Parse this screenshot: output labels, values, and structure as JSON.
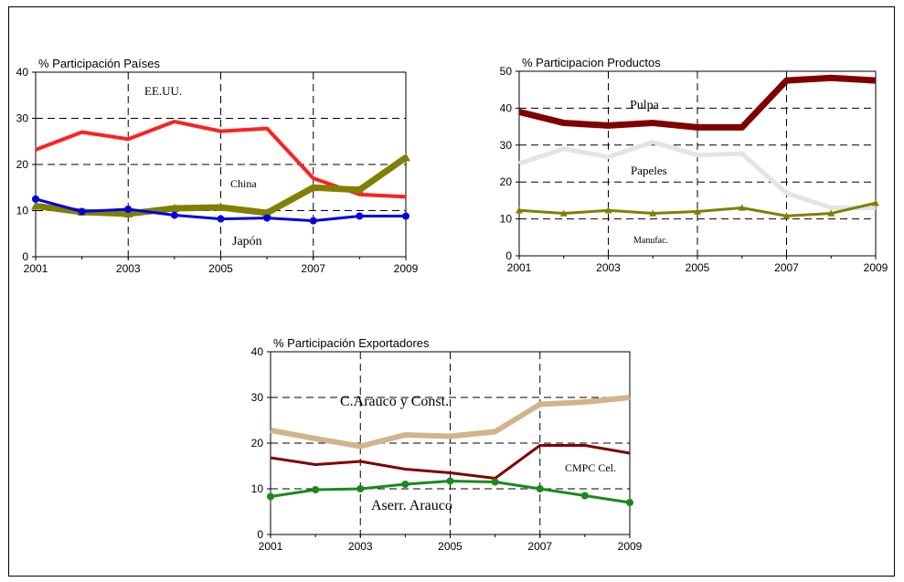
{
  "chart_data": [
    {
      "type": "line",
      "title": "% Participación Países",
      "x": [
        2001,
        2002,
        2003,
        2004,
        2005,
        2006,
        2007,
        2008,
        2009
      ],
      "x_tick_labels": [
        "2001",
        "2003",
        "2005",
        "2007",
        "2009"
      ],
      "y_tick_labels": [
        "0",
        "10",
        "20",
        "30",
        "40"
      ],
      "ylim": [
        0,
        40
      ],
      "grid": "dashed",
      "series": [
        {
          "name": "EE.UU.",
          "color": "#ff2020",
          "values": [
            23.2,
            27.0,
            25.5,
            29.3,
            27.2,
            27.8,
            17.0,
            13.5,
            13.0
          ]
        },
        {
          "name": "China",
          "color": "#808000",
          "values": [
            11.0,
            9.7,
            9.3,
            10.5,
            10.7,
            9.5,
            15.0,
            14.5,
            21.5
          ]
        },
        {
          "name": "Japón",
          "color": "#0000e0",
          "values": [
            12.5,
            9.8,
            10.3,
            9.0,
            8.2,
            8.4,
            7.8,
            8.8,
            8.8
          ]
        }
      ]
    },
    {
      "type": "line",
      "title": "% Participacion Productos",
      "x": [
        2001,
        2002,
        2003,
        2004,
        2005,
        2006,
        2007,
        2008,
        2009
      ],
      "x_tick_labels": [
        "2001",
        "2003",
        "2005",
        "2007",
        "2009"
      ],
      "y_tick_labels": [
        "0",
        "10",
        "20",
        "30",
        "40",
        "50"
      ],
      "ylim": [
        0,
        50
      ],
      "grid": "dashed",
      "series": [
        {
          "name": "Pulpa",
          "color": "#800000",
          "values": [
            39.0,
            36.0,
            35.3,
            36.0,
            34.8,
            34.8,
            47.5,
            48.2,
            47.5
          ]
        },
        {
          "name": "Papeles",
          "color": "#e4e4e4",
          "values": [
            25.0,
            29.0,
            26.8,
            30.8,
            27.3,
            27.7,
            17.0,
            13.0,
            13.0
          ]
        },
        {
          "name": "Manufac.",
          "color": "#808000",
          "values": [
            12.3,
            11.5,
            12.3,
            11.5,
            12.0,
            13.0,
            10.8,
            11.5,
            14.3
          ]
        }
      ]
    },
    {
      "type": "line",
      "title": "% Participación Exportadores",
      "x": [
        2001,
        2002,
        2003,
        2004,
        2005,
        2006,
        2007,
        2008,
        2009
      ],
      "x_tick_labels": [
        "2001",
        "2003",
        "2005",
        "2007",
        "2009"
      ],
      "y_tick_labels": [
        "0",
        "10",
        "20",
        "30",
        "40"
      ],
      "ylim": [
        0,
        40
      ],
      "grid": "dashed",
      "series": [
        {
          "name": "C.Arauco y Const.",
          "color": "#d2b48c",
          "values": [
            22.8,
            21.0,
            19.3,
            21.8,
            21.5,
            22.5,
            28.5,
            29.0,
            30.0
          ]
        },
        {
          "name": "CMPC Cel.",
          "color": "#800000",
          "values": [
            16.8,
            15.3,
            16.0,
            14.3,
            13.5,
            12.3,
            19.5,
            19.5,
            17.8
          ]
        },
        {
          "name": "Aserr. Arauco",
          "color": "#1a8a1a",
          "values": [
            8.3,
            9.8,
            10.0,
            11.0,
            11.7,
            11.5,
            10.0,
            8.5,
            7.0
          ]
        }
      ]
    }
  ]
}
